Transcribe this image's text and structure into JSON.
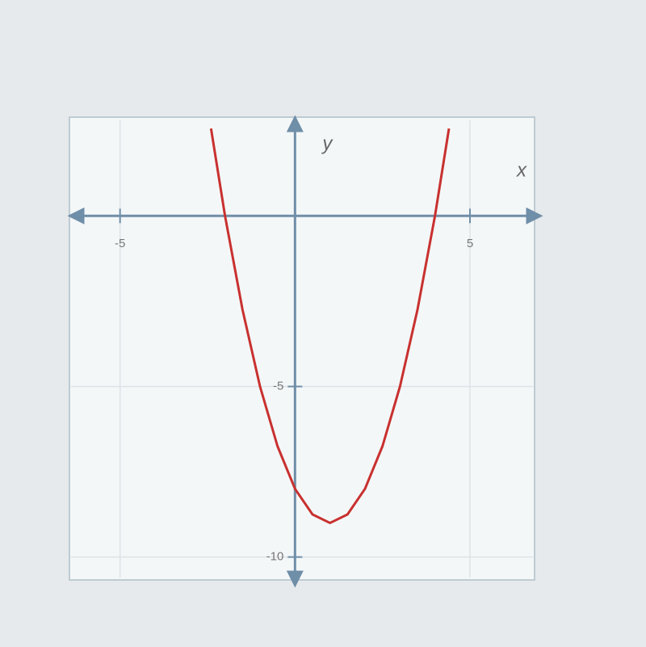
{
  "chart_data": {
    "type": "line",
    "x_label": "x",
    "y_label": "y",
    "series": [
      {
        "color": "#c8312f",
        "x": [
          -2.4,
          -2,
          -1.5,
          -1,
          -0.5,
          0,
          0.5,
          1,
          1.5,
          2,
          2.5,
          3,
          3.5,
          4,
          4.4
        ],
        "values": [
          2.56,
          0,
          -2.75,
          -5,
          -6.75,
          -8,
          -8.75,
          -9,
          -8.75,
          -8,
          -6.75,
          -5,
          -2.75,
          0,
          2.56
        ]
      }
    ],
    "xlim": [
      -6.4,
      6.8
    ],
    "ylim": [
      -10.6,
      2.8
    ],
    "xticks": [
      -5,
      5
    ],
    "yticks": [
      -5,
      -10
    ],
    "grid": true
  }
}
